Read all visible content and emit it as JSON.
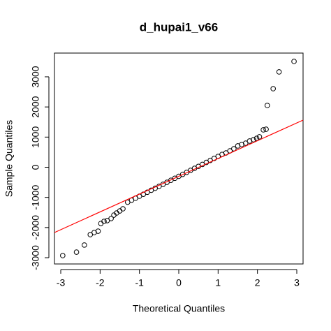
{
  "chart_data": {
    "type": "qqplot",
    "title": "d_hupai1_v66",
    "xlabel": "Theoretical Quantiles",
    "ylabel": "Sample Quantiles",
    "xlim": [
      -3.16,
      3.16
    ],
    "ylim": [
      -3208,
      3787
    ],
    "xticks": [
      -3,
      -2,
      -1,
      0,
      1,
      2,
      3
    ],
    "yticks": [
      -3000,
      -2000,
      -1000,
      0,
      1000,
      2000,
      3000
    ],
    "color": "#000000",
    "line": {
      "intercept": -301,
      "slope": 590,
      "color": "#ff0000"
    },
    "x": [
      -2.95,
      -2.6,
      -2.4,
      -2.25,
      -2.15,
      -2.05,
      -1.98,
      -1.9,
      -1.82,
      -1.72,
      -1.65,
      -1.58,
      -1.5,
      -1.42,
      -1.3,
      -1.2,
      -1.1,
      -1.0,
      -0.9,
      -0.8,
      -0.7,
      -0.6,
      -0.5,
      -0.4,
      -0.3,
      -0.2,
      -0.1,
      0,
      0.1,
      0.2,
      0.3,
      0.4,
      0.5,
      0.6,
      0.7,
      0.8,
      0.9,
      1.0,
      1.1,
      1.2,
      1.3,
      1.4,
      1.5,
      1.6,
      1.7,
      1.8,
      1.9,
      1.98,
      2.05,
      2.15,
      2.22,
      2.25,
      2.4,
      2.55,
      2.93
    ],
    "values": [
      -2930,
      -2815,
      -2580,
      -2235,
      -2165,
      -2120,
      -1865,
      -1795,
      -1770,
      -1700,
      -1587,
      -1517,
      -1448,
      -1378,
      -1159,
      -1093,
      -1027,
      -961,
      -895,
      -829,
      -763,
      -697,
      -631,
      -565,
      -499,
      -433,
      -367,
      -301,
      -235,
      -169,
      -103,
      -37,
      29,
      95,
      161,
      227,
      293,
      359,
      425,
      475,
      544,
      614,
      707,
      753,
      799,
      869,
      915,
      961,
      1008,
      1240,
      1260,
      2050,
      2606,
      3162,
      3510
    ]
  }
}
